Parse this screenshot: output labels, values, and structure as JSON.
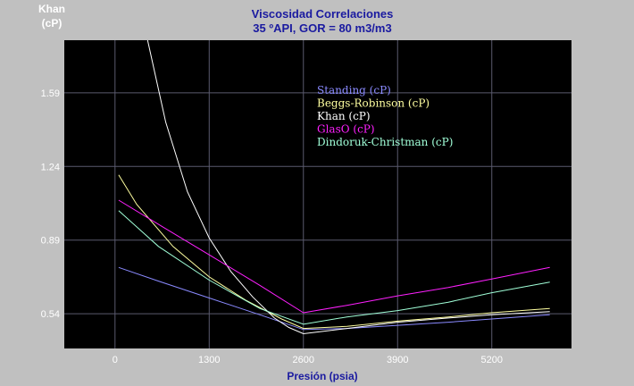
{
  "chart_data": {
    "type": "line",
    "title": "Viscosidad Correlaciones",
    "subtitle": "35 ºAPI, GOR = 80 m3/m3",
    "ylabel_line1": "Khan",
    "ylabel_line2": "(cP)",
    "xlabel": "Presión (psia)",
    "xlim": [
      -700,
      6300
    ],
    "ylim": [
      0.375,
      1.84
    ],
    "xticks": [
      0,
      1300,
      2600,
      3900,
      5200
    ],
    "yticks": [
      0.54,
      0.89,
      1.24,
      1.59
    ],
    "ytick_labels": [
      "0.54",
      "0.89",
      "1.24",
      "1.59"
    ],
    "grid": true,
    "legend_position": "upper-center",
    "series": [
      {
        "name": "Standing (cP)",
        "color": "#8a8aff",
        "x": [
          50,
          600,
          1300,
          2000,
          2600,
          3200,
          3900,
          4600,
          5200,
          6000
        ],
        "y": [
          0.76,
          0.695,
          0.615,
          0.535,
          0.465,
          0.47,
          0.485,
          0.5,
          0.515,
          0.535
        ]
      },
      {
        "name": "Beggs-Robinson (cP)",
        "color": "#ffffa0",
        "x": [
          50,
          300,
          800,
          1300,
          1800,
          2300,
          2600,
          3200,
          3900,
          4600,
          5200,
          6000
        ],
        "y": [
          1.2,
          1.06,
          0.86,
          0.715,
          0.605,
          0.515,
          0.47,
          0.48,
          0.505,
          0.525,
          0.545,
          0.565
        ]
      },
      {
        "name": "Khan (cP)",
        "color": "#ffffff",
        "x": [
          450,
          700,
          1000,
          1300,
          1600,
          1900,
          2200,
          2400,
          2600,
          3200,
          3900,
          4600,
          5200,
          6000
        ],
        "y": [
          1.84,
          1.45,
          1.12,
          0.9,
          0.74,
          0.62,
          0.52,
          0.475,
          0.445,
          0.47,
          0.5,
          0.52,
          0.535,
          0.55
        ]
      },
      {
        "name": "GlasO (cP)",
        "color": "#ff20ff",
        "x": [
          50,
          600,
          1300,
          2000,
          2600,
          3200,
          3900,
          4600,
          5200,
          6000
        ],
        "y": [
          1.08,
          0.965,
          0.82,
          0.675,
          0.545,
          0.58,
          0.625,
          0.665,
          0.705,
          0.76
        ]
      },
      {
        "name": "Dindoruk-Christman (cP)",
        "color": "#a0ffd8",
        "x": [
          50,
          600,
          1300,
          2000,
          2600,
          3200,
          3900,
          4600,
          5200,
          6000
        ],
        "y": [
          1.03,
          0.86,
          0.7,
          0.565,
          0.49,
          0.525,
          0.555,
          0.595,
          0.64,
          0.69
        ]
      }
    ]
  }
}
